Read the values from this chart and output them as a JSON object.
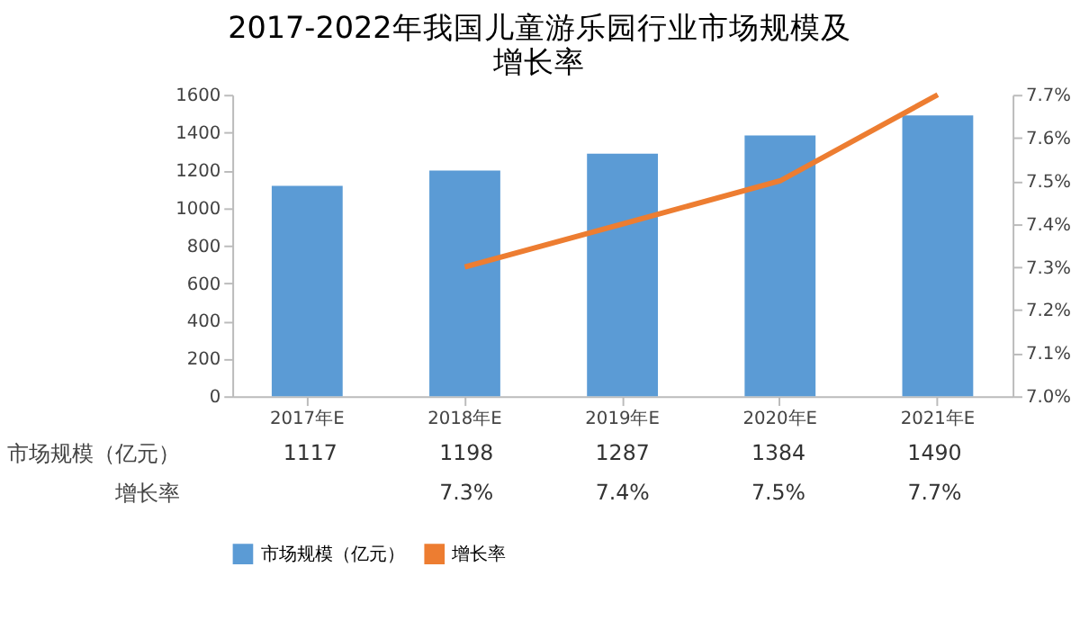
{
  "chart_data": {
    "type": "bar",
    "title": [
      "2017-2022年我国儿童游乐园行业市场规模及",
      "增长率"
    ],
    "categories": [
      "2017年E",
      "2018年E",
      "2019年E",
      "2020年E",
      "2021年E"
    ],
    "series": [
      {
        "name": "市场规模（亿元）",
        "color": "#5b9bd5",
        "values": [
          1117,
          1198,
          1287,
          1384,
          1490
        ]
      },
      {
        "name": "增长率",
        "type": "line",
        "axis": "y2",
        "color": "#ed7d31",
        "values": [
          null,
          7.3,
          7.4,
          7.5,
          7.7
        ],
        "value_labels": [
          null,
          "7.3%",
          "7.4%",
          "7.5%",
          "7.7%"
        ]
      }
    ],
    "ylim": [
      0,
      1600
    ],
    "yticks": [
      0,
      200,
      400,
      600,
      800,
      1000,
      1200,
      1400,
      1600
    ],
    "y2lim": [
      7.0,
      7.7
    ],
    "y2ticks": [
      {
        "value": 7.0,
        "label": "7.0%"
      },
      {
        "value": 7.1,
        "label": "7.1%"
      },
      {
        "value": 7.2,
        "label": "7.2%"
      },
      {
        "value": 7.3,
        "label": "7.3%"
      },
      {
        "value": 7.4,
        "label": "7.4%"
      },
      {
        "value": 7.5,
        "label": "7.5%"
      },
      {
        "value": 7.6,
        "label": "7.6%"
      },
      {
        "value": 7.7,
        "label": "7.7%"
      }
    ],
    "data_labels": true,
    "legend": "bottom",
    "grid": false
  }
}
